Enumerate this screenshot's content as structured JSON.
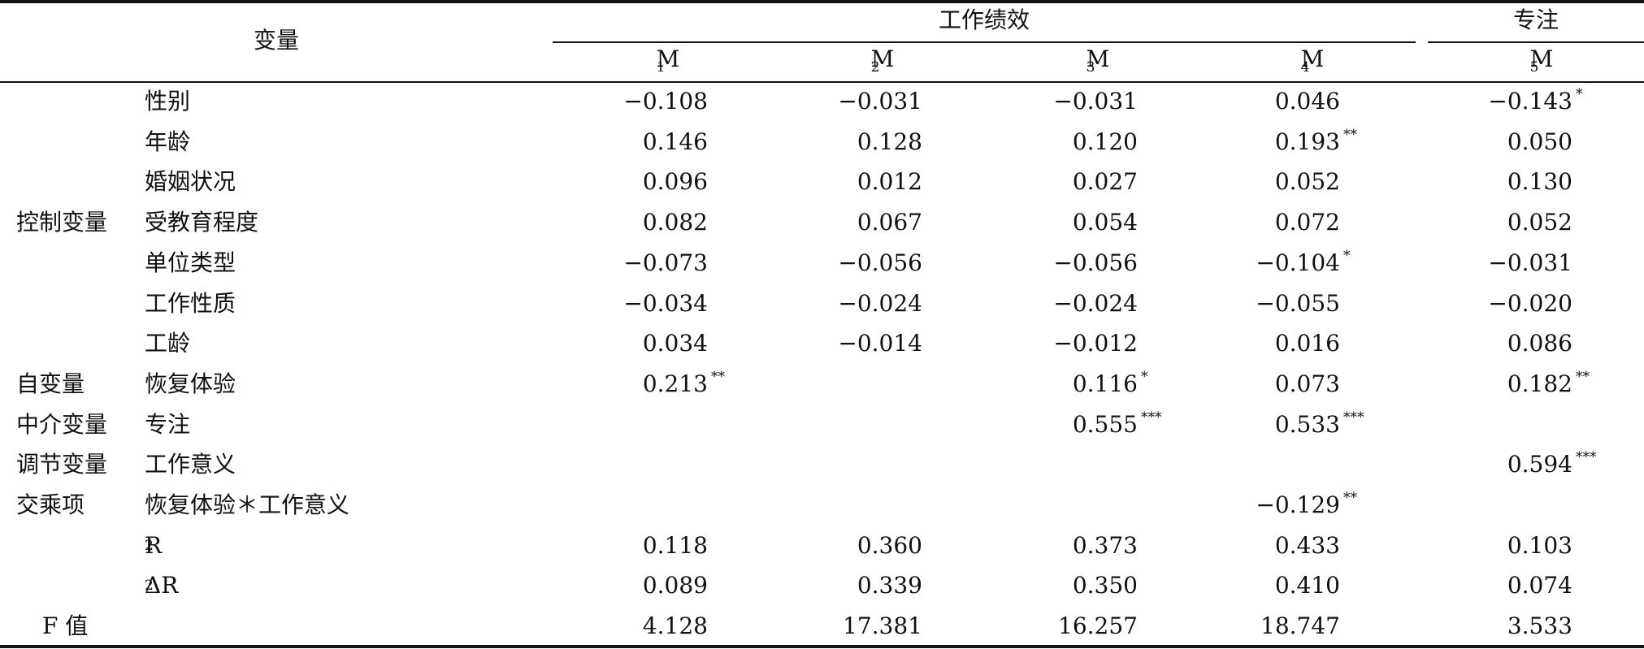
{
  "header": {
    "variable": "变量",
    "groups": [
      {
        "label": "工作绩效"
      },
      {
        "label": "专注"
      }
    ],
    "models": [
      {
        "base": "M",
        "sub": "1"
      },
      {
        "base": "M",
        "sub": "2"
      },
      {
        "base": "M",
        "sub": "3"
      },
      {
        "base": "M",
        "sub": "4"
      },
      {
        "base": "M",
        "sub": "5"
      }
    ]
  },
  "sections": [
    {
      "label": "控制变量",
      "rows": [
        {
          "name": "性别",
          "cells": [
            {
              "v": "−0.108"
            },
            {
              "v": "−0.031"
            },
            {
              "v": "−0.031"
            },
            {
              "v": "0.046"
            },
            {
              "v": "−0.143",
              "sig": "*"
            }
          ]
        },
        {
          "name": "年龄",
          "cells": [
            {
              "v": "0.146"
            },
            {
              "v": "0.128"
            },
            {
              "v": "0.120"
            },
            {
              "v": "0.193",
              "sig": "**"
            },
            {
              "v": "0.050"
            }
          ]
        },
        {
          "name": "婚姻状况",
          "cells": [
            {
              "v": "0.096"
            },
            {
              "v": "0.012"
            },
            {
              "v": "0.027"
            },
            {
              "v": "0.052"
            },
            {
              "v": "0.130"
            }
          ]
        },
        {
          "name": "受教育程度",
          "cells": [
            {
              "v": "0.082"
            },
            {
              "v": "0.067"
            },
            {
              "v": "0.054"
            },
            {
              "v": "0.072"
            },
            {
              "v": "0.052"
            }
          ]
        },
        {
          "name": "单位类型",
          "cells": [
            {
              "v": "−0.073"
            },
            {
              "v": "−0.056"
            },
            {
              "v": "−0.056"
            },
            {
              "v": "−0.104",
              "sig": "*"
            },
            {
              "v": "−0.031"
            }
          ]
        },
        {
          "name": "工作性质",
          "cells": [
            {
              "v": "−0.034"
            },
            {
              "v": "−0.024"
            },
            {
              "v": "−0.024"
            },
            {
              "v": "−0.055"
            },
            {
              "v": "−0.020"
            }
          ]
        },
        {
          "name": "工龄",
          "cells": [
            {
              "v": "0.034"
            },
            {
              "v": "−0.014"
            },
            {
              "v": "−0.012"
            },
            {
              "v": "0.016"
            },
            {
              "v": "0.086"
            }
          ]
        }
      ]
    },
    {
      "label": "自变量",
      "rows": [
        {
          "name": "恢复体验",
          "cells": [
            {
              "v": "0.213",
              "sig": "**"
            },
            null,
            {
              "v": "0.116",
              "sig": "*"
            },
            {
              "v": "0.073"
            },
            {
              "v": "0.182",
              "sig": "**"
            }
          ]
        }
      ]
    },
    {
      "label": "中介变量",
      "rows": [
        {
          "name": "专注",
          "cells": [
            null,
            null,
            {
              "v": "0.555",
              "sig": "***"
            },
            {
              "v": "0.533",
              "sig": "***"
            },
            null
          ]
        }
      ]
    },
    {
      "label": "调节变量",
      "rows": [
        {
          "name": "工作意义",
          "cells": [
            null,
            null,
            null,
            null,
            {
              "v": "0.594",
              "sig": "***"
            }
          ]
        }
      ]
    },
    {
      "label": "交乘项",
      "rows": [
        {
          "name": "恢复体验＊工作意义",
          "cells": [
            null,
            null,
            null,
            {
              "v": "−0.129",
              "sig": "**"
            },
            null
          ]
        }
      ]
    },
    {
      "rows": [
        {
          "name": "R",
          "sup": "2",
          "cells": [
            {
              "v": "0.118"
            },
            {
              "v": "0.360"
            },
            {
              "v": "0.373"
            },
            {
              "v": "0.433"
            },
            {
              "v": "0.103"
            }
          ]
        },
        {
          "name": "ΔR",
          "sup": "2",
          "cells": [
            {
              "v": "0.089"
            },
            {
              "v": "0.339"
            },
            {
              "v": "0.350"
            },
            {
              "v": "0.410"
            },
            {
              "v": "0.074"
            }
          ]
        }
      ]
    },
    {
      "label": "F 值",
      "rows": [
        {
          "cells": [
            {
              "v": "4.128"
            },
            {
              "v": "17.381"
            },
            {
              "v": "16.257"
            },
            {
              "v": "18.747"
            },
            {
              "v": "3.533"
            }
          ]
        }
      ]
    }
  ]
}
